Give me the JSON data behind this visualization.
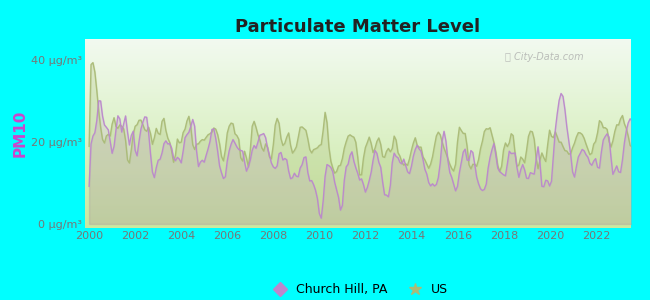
{
  "title": "Particulate Matter Level",
  "ylabel": "PM10",
  "yticks": [
    0,
    20,
    40
  ],
  "ytick_labels": [
    "0 μg/m³",
    "20 μg/m³",
    "40 μg/m³"
  ],
  "xlim": [
    1999.8,
    2023.5
  ],
  "ylim": [
    -1,
    45
  ],
  "xlabel_ticks": [
    2000,
    2002,
    2004,
    2006,
    2008,
    2010,
    2012,
    2014,
    2016,
    2018,
    2020,
    2022
  ],
  "background_outer": "#00FFFF",
  "plot_bg_bottom": "#d4edb0",
  "plot_bg_top": "#f5faf0",
  "church_hill_color": "#bb88cc",
  "us_color": "#aabb77",
  "church_hill_label": "Church Hill, PA",
  "us_label": "US",
  "title_fontsize": 13,
  "axis_label_fontsize": 9,
  "tick_fontsize": 8,
  "ylabel_color": "#cc44cc",
  "tick_label_color": "#777777"
}
